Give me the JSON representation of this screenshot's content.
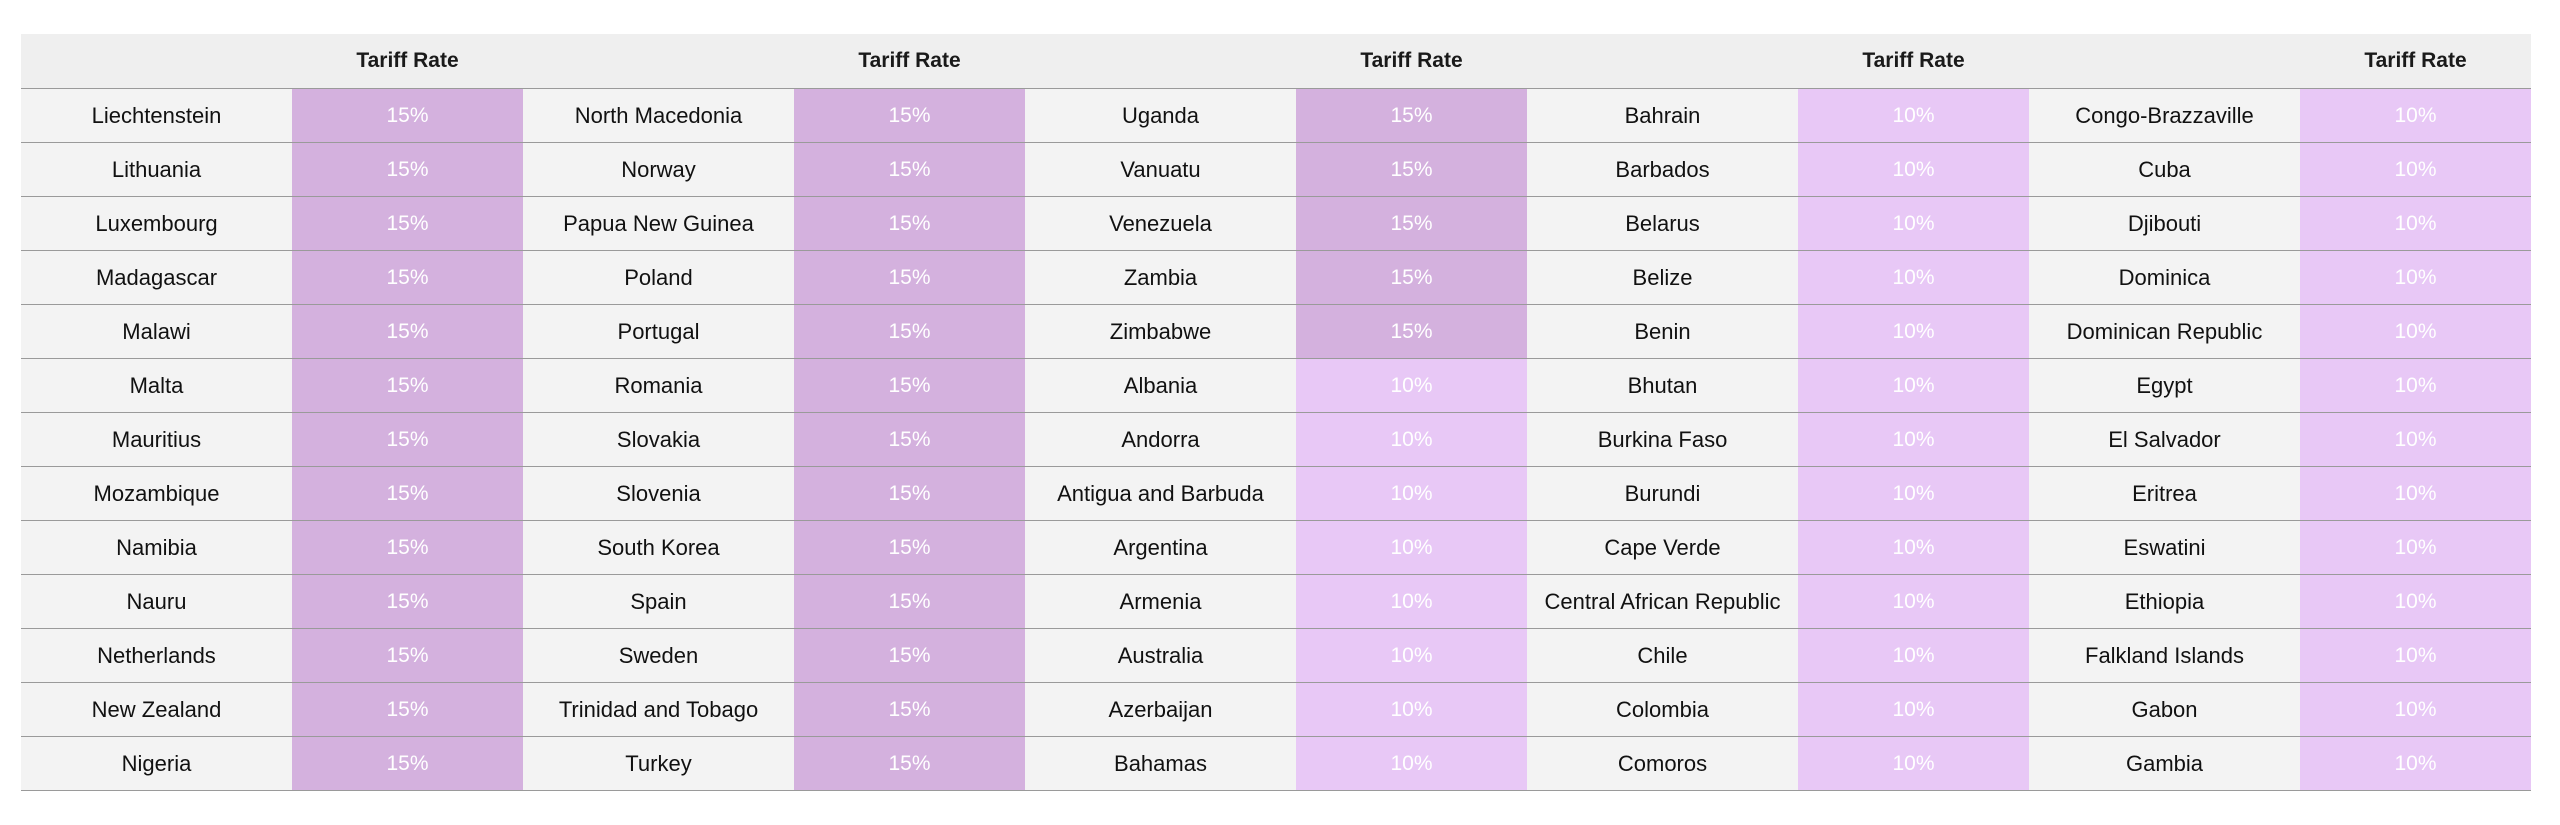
{
  "table": {
    "header": {
      "country": "",
      "tariff": "Tariff Rate"
    },
    "colors": {
      "header_bg": "#efefef",
      "country_bg": "#f3f3f3",
      "rate_15_bg": "#d4b1de",
      "rate_10_bg": "#e8c8f6",
      "rate_text": "#ffffff",
      "divider": "#9a9a9a"
    },
    "groups": [
      {
        "rows": [
          {
            "country": "Liechtenstein",
            "rate": "15%"
          },
          {
            "country": "Lithuania",
            "rate": "15%"
          },
          {
            "country": "Luxembourg",
            "rate": "15%"
          },
          {
            "country": "Madagascar",
            "rate": "15%"
          },
          {
            "country": "Malawi",
            "rate": "15%"
          },
          {
            "country": "Malta",
            "rate": "15%"
          },
          {
            "country": "Mauritius",
            "rate": "15%"
          },
          {
            "country": "Mozambique",
            "rate": "15%"
          },
          {
            "country": "Namibia",
            "rate": "15%"
          },
          {
            "country": "Nauru",
            "rate": "15%"
          },
          {
            "country": "Netherlands",
            "rate": "15%"
          },
          {
            "country": "New Zealand",
            "rate": "15%"
          },
          {
            "country": "Nigeria",
            "rate": "15%"
          }
        ]
      },
      {
        "rows": [
          {
            "country": "North Macedonia",
            "rate": "15%"
          },
          {
            "country": "Norway",
            "rate": "15%"
          },
          {
            "country": "Papua New Guinea",
            "rate": "15%"
          },
          {
            "country": "Poland",
            "rate": "15%"
          },
          {
            "country": "Portugal",
            "rate": "15%"
          },
          {
            "country": "Romania",
            "rate": "15%"
          },
          {
            "country": "Slovakia",
            "rate": "15%"
          },
          {
            "country": "Slovenia",
            "rate": "15%"
          },
          {
            "country": "South Korea",
            "rate": "15%"
          },
          {
            "country": "Spain",
            "rate": "15%"
          },
          {
            "country": "Sweden",
            "rate": "15%"
          },
          {
            "country": "Trinidad and Tobago",
            "rate": "15%"
          },
          {
            "country": "Turkey",
            "rate": "15%"
          }
        ]
      },
      {
        "rows": [
          {
            "country": "Uganda",
            "rate": "15%"
          },
          {
            "country": "Vanuatu",
            "rate": "15%"
          },
          {
            "country": "Venezuela",
            "rate": "15%"
          },
          {
            "country": "Zambia",
            "rate": "15%"
          },
          {
            "country": "Zimbabwe",
            "rate": "15%"
          },
          {
            "country": "Albania",
            "rate": "10%"
          },
          {
            "country": "Andorra",
            "rate": "10%"
          },
          {
            "country": "Antigua and Barbuda",
            "rate": "10%"
          },
          {
            "country": "Argentina",
            "rate": "10%"
          },
          {
            "country": "Armenia",
            "rate": "10%"
          },
          {
            "country": "Australia",
            "rate": "10%"
          },
          {
            "country": "Azerbaijan",
            "rate": "10%"
          },
          {
            "country": "Bahamas",
            "rate": "10%"
          }
        ]
      },
      {
        "rows": [
          {
            "country": "Bahrain",
            "rate": "10%"
          },
          {
            "country": "Barbados",
            "rate": "10%"
          },
          {
            "country": "Belarus",
            "rate": "10%"
          },
          {
            "country": "Belize",
            "rate": "10%"
          },
          {
            "country": "Benin",
            "rate": "10%"
          },
          {
            "country": "Bhutan",
            "rate": "10%"
          },
          {
            "country": "Burkina Faso",
            "rate": "10%"
          },
          {
            "country": "Burundi",
            "rate": "10%"
          },
          {
            "country": "Cape Verde",
            "rate": "10%"
          },
          {
            "country": "Central African Republic",
            "rate": "10%"
          },
          {
            "country": "Chile",
            "rate": "10%"
          },
          {
            "country": "Colombia",
            "rate": "10%"
          },
          {
            "country": "Comoros",
            "rate": "10%"
          }
        ]
      },
      {
        "rows": [
          {
            "country": "Congo-Brazzaville",
            "rate": "10%"
          },
          {
            "country": "Cuba",
            "rate": "10%"
          },
          {
            "country": "Djibouti",
            "rate": "10%"
          },
          {
            "country": "Dominica",
            "rate": "10%"
          },
          {
            "country": "Dominican Republic",
            "rate": "10%"
          },
          {
            "country": "Egypt",
            "rate": "10%"
          },
          {
            "country": "El Salvador",
            "rate": "10%"
          },
          {
            "country": "Eritrea",
            "rate": "10%"
          },
          {
            "country": "Eswatini",
            "rate": "10%"
          },
          {
            "country": "Ethiopia",
            "rate": "10%"
          },
          {
            "country": "Falkland Islands",
            "rate": "10%"
          },
          {
            "country": "Gabon",
            "rate": "10%"
          },
          {
            "country": "Gambia",
            "rate": "10%"
          }
        ]
      }
    ]
  }
}
